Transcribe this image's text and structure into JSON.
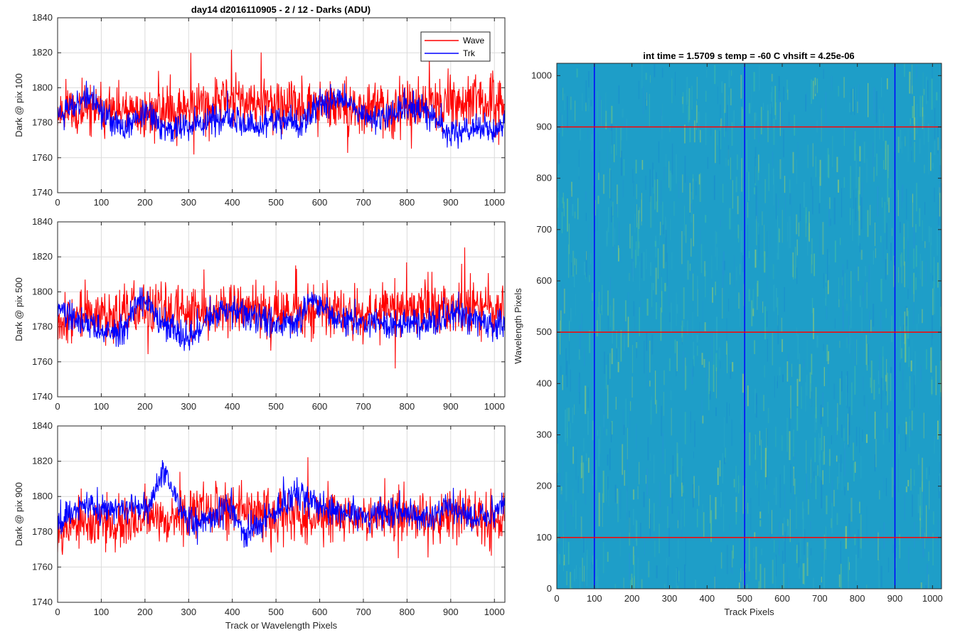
{
  "figure": {
    "title_left": "day14 d2016110905 - 2 / 12 - Darks (ADU)",
    "title_right": "int time = 1.5709 s    temp = -60 C    vhsift = 4.25e-06"
  },
  "colors": {
    "wave": "#ff0000",
    "trk": "#0000ff",
    "grid": "#dcdcdc",
    "axis": "#262626",
    "heatmap_base": "#1e9ec8",
    "heatmap_high": "#9ed06c"
  },
  "chart_data": [
    {
      "type": "line",
      "id": "pix100",
      "title": "day14 d2016110905 - 2 / 12 - Darks (ADU)",
      "xlabel": "",
      "ylabel": "Dark @ pix 100",
      "xlim": [
        0,
        1024
      ],
      "ylim": [
        1740,
        1840
      ],
      "xticks": [
        0,
        100,
        200,
        300,
        400,
        500,
        600,
        700,
        800,
        900,
        1000
      ],
      "yticks": [
        1740,
        1760,
        1780,
        1800,
        1820,
        1840
      ],
      "grid": true,
      "legend": {
        "placement": "top-right",
        "entries": [
          "Wave",
          "Trk"
        ]
      },
      "series": [
        {
          "name": "Wave",
          "color": "#ff0000",
          "mean": 1788,
          "noise": 7,
          "spike": 18,
          "seed": 11,
          "x": [
            0,
            100,
            200,
            300,
            400,
            500,
            600,
            700,
            800,
            900,
            1000,
            1023
          ],
          "values": [
            1787,
            1786,
            1785,
            1790,
            1793,
            1789,
            1790,
            1787,
            1790,
            1792,
            1791,
            1793
          ]
        },
        {
          "name": "Trk",
          "color": "#0000ff",
          "mean": 1784,
          "noise": 4,
          "spike": 8,
          "seed": 23,
          "x": [
            0,
            40,
            65,
            100,
            150,
            200,
            250,
            300,
            350,
            400,
            450,
            500,
            550,
            600,
            650,
            700,
            750,
            800,
            850,
            900,
            950,
            1000,
            1023
          ],
          "values": [
            1786,
            1790,
            1797,
            1787,
            1775,
            1786,
            1776,
            1778,
            1782,
            1781,
            1776,
            1782,
            1778,
            1790,
            1795,
            1784,
            1783,
            1789,
            1785,
            1773,
            1778,
            1775,
            1782
          ]
        }
      ]
    },
    {
      "type": "line",
      "id": "pix500",
      "xlabel": "",
      "ylabel": "Dark @ pix 500",
      "xlim": [
        0,
        1024
      ],
      "ylim": [
        1740,
        1840
      ],
      "xticks": [
        0,
        100,
        200,
        300,
        400,
        500,
        600,
        700,
        800,
        900,
        1000
      ],
      "yticks": [
        1740,
        1760,
        1780,
        1800,
        1820,
        1840
      ],
      "grid": true,
      "series": [
        {
          "name": "Wave",
          "color": "#ff0000",
          "mean": 1787,
          "noise": 7,
          "spike": 18,
          "seed": 37,
          "x": [
            0,
            100,
            200,
            300,
            400,
            500,
            600,
            700,
            800,
            900,
            1000,
            1023
          ],
          "values": [
            1785,
            1787,
            1789,
            1790,
            1791,
            1788,
            1789,
            1788,
            1790,
            1790,
            1791,
            1790
          ]
        },
        {
          "name": "Trk",
          "color": "#0000ff",
          "mean": 1784,
          "noise": 4,
          "spike": 8,
          "seed": 41,
          "x": [
            0,
            50,
            100,
            150,
            190,
            250,
            300,
            350,
            400,
            450,
            500,
            550,
            580,
            650,
            700,
            750,
            800,
            850,
            900,
            950,
            1000,
            1023
          ],
          "values": [
            1790,
            1784,
            1778,
            1776,
            1797,
            1780,
            1772,
            1786,
            1789,
            1785,
            1781,
            1784,
            1795,
            1783,
            1782,
            1781,
            1783,
            1781,
            1787,
            1785,
            1780,
            1782
          ]
        }
      ]
    },
    {
      "type": "line",
      "id": "pix900",
      "xlabel": "Track or Wavelength Pixels",
      "ylabel": "Dark @ pix 900",
      "xlim": [
        0,
        1024
      ],
      "ylim": [
        1740,
        1840
      ],
      "xticks": [
        0,
        100,
        200,
        300,
        400,
        500,
        600,
        700,
        800,
        900,
        1000
      ],
      "yticks": [
        1740,
        1760,
        1780,
        1800,
        1820,
        1840
      ],
      "grid": true,
      "series": [
        {
          "name": "Wave",
          "color": "#ff0000",
          "mean": 1785,
          "noise": 7,
          "spike": 18,
          "seed": 53,
          "x": [
            0,
            100,
            200,
            300,
            400,
            500,
            600,
            700,
            800,
            900,
            1000,
            1023
          ],
          "values": [
            1783,
            1784,
            1786,
            1791,
            1793,
            1790,
            1789,
            1790,
            1789,
            1787,
            1788,
            1790
          ]
        },
        {
          "name": "Trk",
          "color": "#0000ff",
          "mean": 1790,
          "noise": 4,
          "spike": 8,
          "seed": 67,
          "x": [
            0,
            60,
            100,
            150,
            200,
            245,
            290,
            350,
            390,
            430,
            480,
            550,
            600,
            700,
            760,
            800,
            850,
            900,
            950,
            1000,
            1023
          ],
          "values": [
            1786,
            1795,
            1793,
            1794,
            1792,
            1816,
            1789,
            1786,
            1795,
            1778,
            1788,
            1802,
            1794,
            1789,
            1790,
            1791,
            1787,
            1795,
            1788,
            1790,
            1798
          ]
        }
      ]
    },
    {
      "type": "heatmap",
      "id": "dark-image",
      "title": "int time = 1.5709 s    temp = -60 C    vhsift = 4.25e-06",
      "xlabel": "Track Pixels",
      "ylabel": "Wavelength Pixels",
      "xlim": [
        0,
        1024
      ],
      "ylim": [
        0,
        1024
      ],
      "xticks": [
        0,
        100,
        200,
        300,
        400,
        500,
        600,
        700,
        800,
        900,
        1000
      ],
      "yticks": [
        0,
        100,
        200,
        300,
        400,
        500,
        600,
        700,
        800,
        900,
        1000
      ],
      "vertical_markers": [
        100,
        500,
        900
      ],
      "horizontal_markers": [
        100,
        500,
        900
      ],
      "vertical_marker_color": "#0000ff",
      "horizontal_marker_color": "#ff0000"
    }
  ]
}
